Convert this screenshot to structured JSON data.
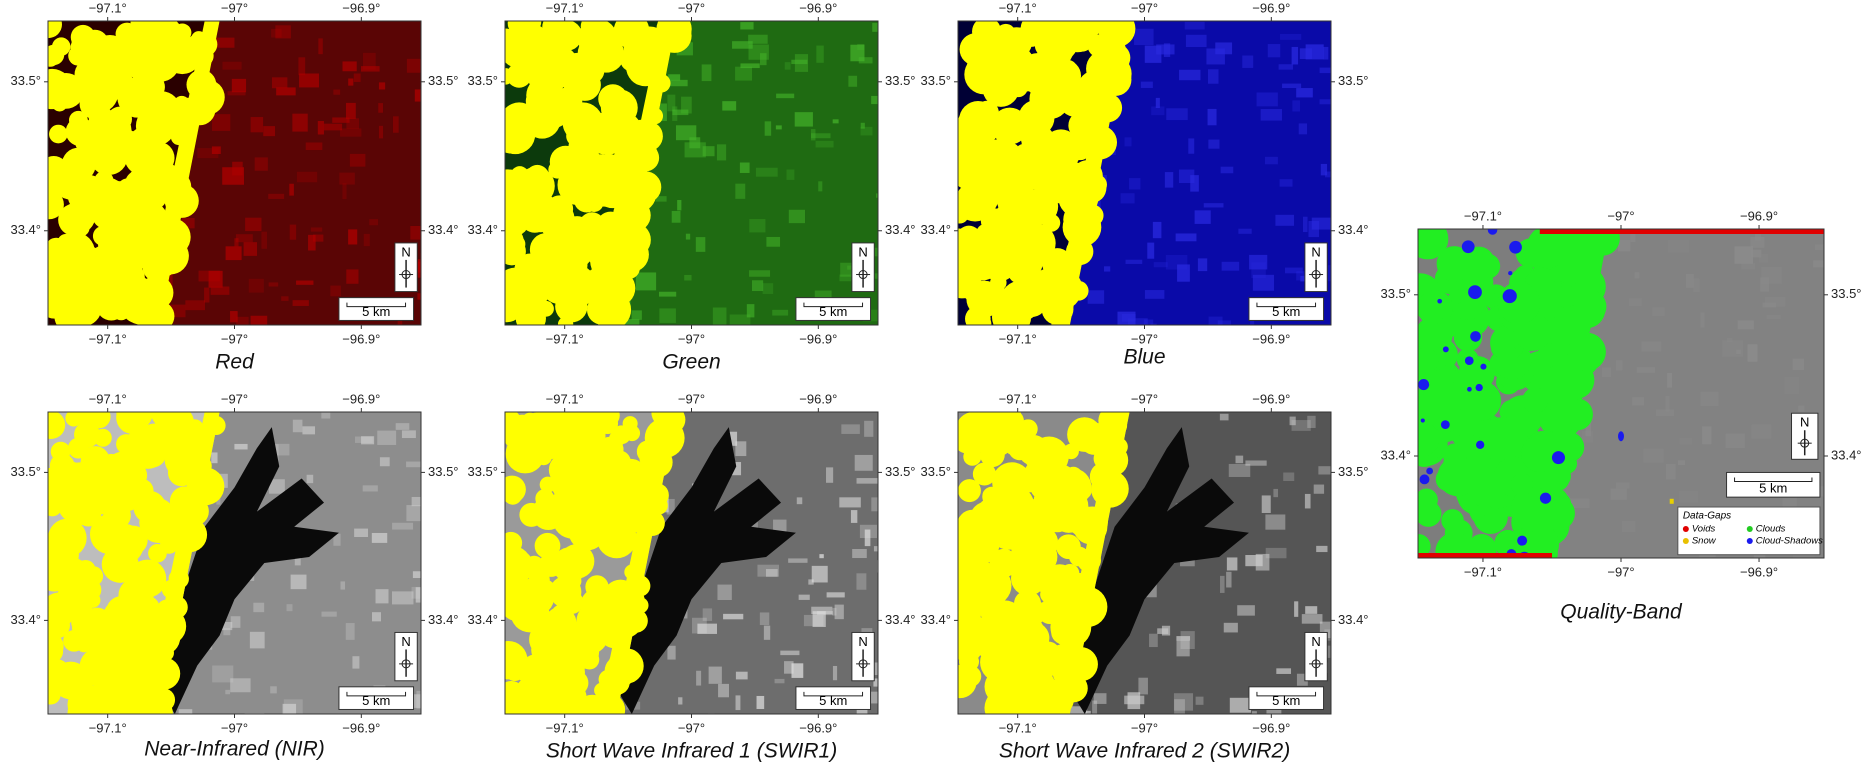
{
  "panels": [
    {
      "title": "Red"
    },
    {
      "title": "Green"
    },
    {
      "title": "Blue"
    },
    {
      "title": "Near-Infrared (NIR)"
    },
    {
      "title": "Short Wave Infrared 1 (SWIR1)"
    },
    {
      "title": "Short Wave Infrared 2 (SWIR2)"
    }
  ],
  "quality_band": {
    "title": "Quality-Band",
    "legend": {
      "title": "Data-Gaps",
      "items": [
        "Voids",
        "Clouds",
        "Snow",
        "Cloud-Shadows"
      ]
    }
  },
  "axes": {
    "longitude_labels": [
      "−97.1°",
      "−97°",
      "−96.9°"
    ],
    "latitude_labels": [
      "33.5°",
      "33.4°"
    ],
    "scale_bar": "5 km",
    "north": "N"
  }
}
